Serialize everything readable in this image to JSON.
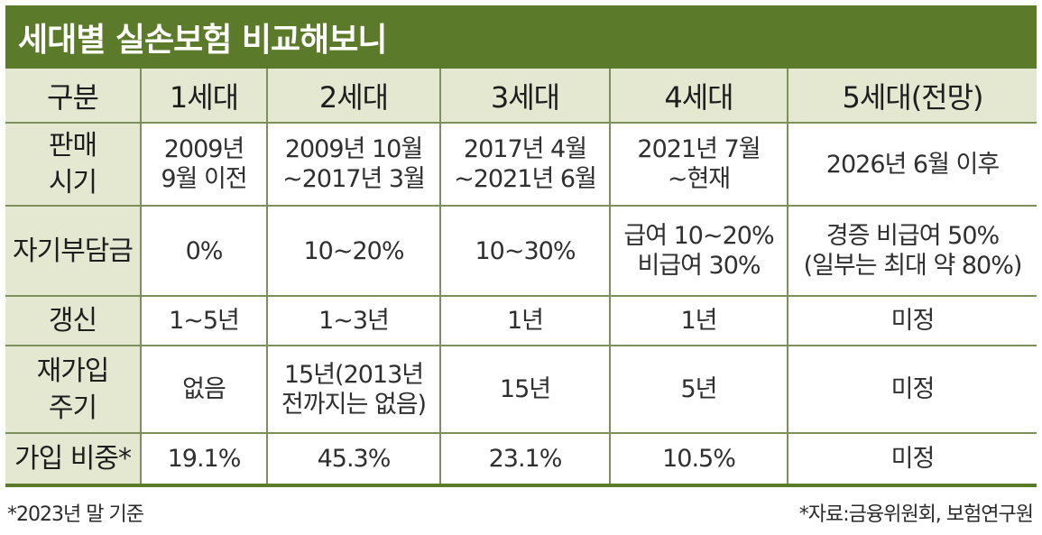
{
  "title": "세대별 실손보험 비교해보니",
  "header": [
    "구분",
    "1세대",
    "2세대",
    "3세대",
    "4세대",
    "5세대(전망)"
  ],
  "rows": [
    {
      "label": "판매\n시기",
      "cells": [
        "2009년\n9월 이전",
        "2009년 10월\n~2017년 3월",
        "2017년 4월\n~2021년 6월",
        "2021년 7월\n~현재",
        "2026년 6월 이후"
      ]
    },
    {
      "label": "자기부담금",
      "cells": [
        "0%",
        "10~20%",
        "10~30%",
        "급여 10~20%\n비급여 30%",
        "경증 비급여 50%\n(일부는 최대 약 80%)"
      ]
    },
    {
      "label": "갱신",
      "cells": [
        "1~5년",
        "1~3년",
        "1년",
        "1년",
        "미정"
      ]
    },
    {
      "label": "재가입\n주기",
      "cells": [
        "없음",
        "15년(2013년\n전까지는 없음)",
        "15년",
        "5년",
        "미정"
      ]
    },
    {
      "label": "가입 비중*",
      "cells": [
        "19.1%",
        "45.3%",
        "23.1%",
        "10.5%",
        "미정"
      ]
    }
  ],
  "footnote_left": "*2023년 말 기준",
  "footnote_right": "*자료:금융위원회, 보험연구원",
  "colors": {
    "title_bg": "#5b7a2a",
    "header_bg": "#e4e8d1",
    "border": "#7d8f5d"
  }
}
